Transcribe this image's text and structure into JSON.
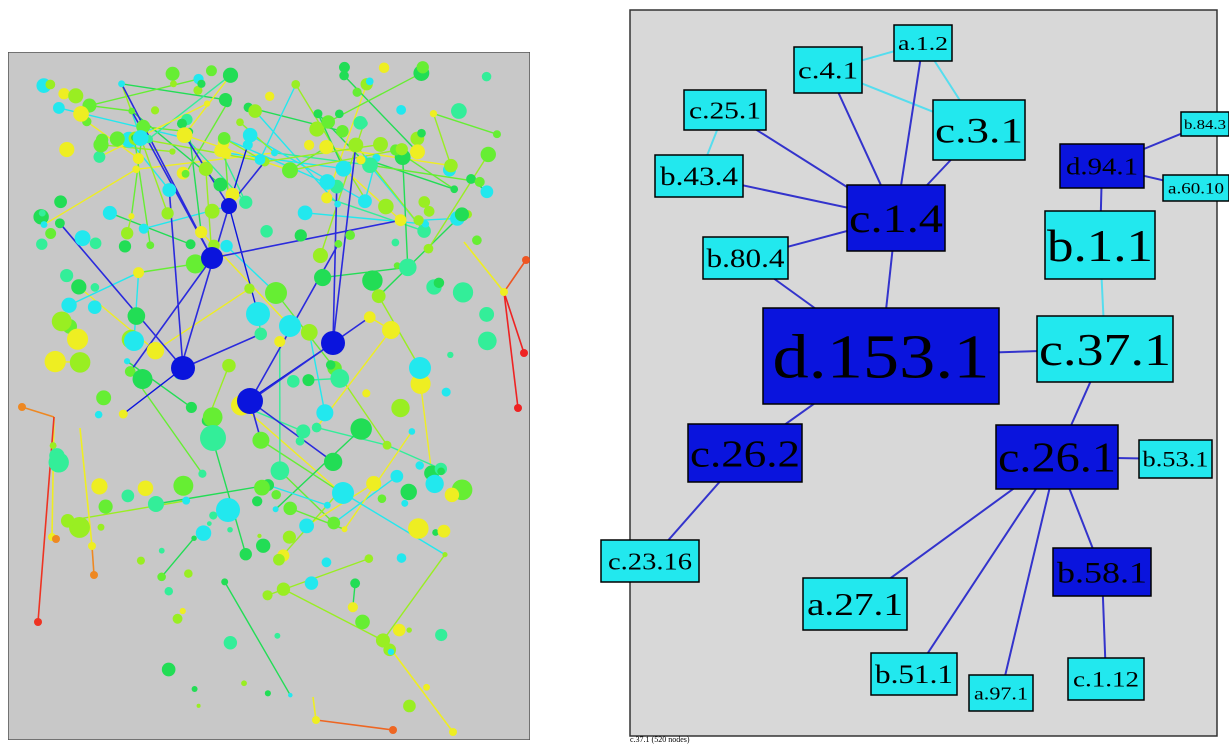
{
  "right_graph": {
    "nodes": [
      {
        "id": "a.1.2",
        "label": "a.1.2",
        "color": "#22e8ee"
      },
      {
        "id": "c.4.1",
        "label": "c.4.1",
        "color": "#22e8ee"
      },
      {
        "id": "c.3.1",
        "label": "c.3.1",
        "color": "#22e8ee"
      },
      {
        "id": "c.25.1",
        "label": "c.25.1",
        "color": "#22e8ee"
      },
      {
        "id": "b.43.4",
        "label": "b.43.4",
        "color": "#22e8ee"
      },
      {
        "id": "c.1.4",
        "label": "c.1.4",
        "color": "#0a14dd"
      },
      {
        "id": "b.80.4",
        "label": "b.80.4",
        "color": "#22e8ee"
      },
      {
        "id": "b.84.3",
        "label": "b.84.3",
        "color": "#22e8ee"
      },
      {
        "id": "d.94.1",
        "label": "d.94.1",
        "color": "#0a14dd"
      },
      {
        "id": "a.60.10",
        "label": "a.60.10",
        "color": "#22e8ee"
      },
      {
        "id": "b.1.1",
        "label": "b.1.1",
        "color": "#22e8ee"
      },
      {
        "id": "d.153.1",
        "label": "d.153.1",
        "color": "#0a14dd"
      },
      {
        "id": "c.37.1",
        "label": "c.37.1",
        "color": "#22e8ee"
      },
      {
        "id": "c.26.2",
        "label": "c.26.2",
        "color": "#0a14dd"
      },
      {
        "id": "c.26.1",
        "label": "c.26.1",
        "color": "#0a14dd"
      },
      {
        "id": "b.53.1",
        "label": "b.53.1",
        "color": "#22e8ee"
      },
      {
        "id": "c.23.16",
        "label": "c.23.16",
        "color": "#22e8ee"
      },
      {
        "id": "b.58.1",
        "label": "b.58.1",
        "color": "#0a14dd"
      },
      {
        "id": "a.27.1",
        "label": "a.27.1",
        "color": "#22e8ee"
      },
      {
        "id": "b.51.1",
        "label": "b.51.1",
        "color": "#22e8ee"
      },
      {
        "id": "a.97.1",
        "label": "a.97.1",
        "color": "#22e8ee"
      },
      {
        "id": "c.1.12",
        "label": "c.1.12",
        "color": "#22e8ee"
      }
    ],
    "edges": [
      {
        "from": "c.4.1",
        "to": "a.1.2",
        "color": "#55ddee"
      },
      {
        "from": "a.1.2",
        "to": "c.3.1",
        "color": "#55ddee"
      },
      {
        "from": "c.4.1",
        "to": "c.3.1",
        "color": "#55ddee"
      },
      {
        "from": "c.4.1",
        "to": "c.1.4",
        "color": "#3333cc"
      },
      {
        "from": "a.1.2",
        "to": "c.1.4",
        "color": "#3333cc"
      },
      {
        "from": "c.3.1",
        "to": "c.1.4",
        "color": "#3333cc"
      },
      {
        "from": "c.25.1",
        "to": "b.43.4",
        "color": "#55ddee"
      },
      {
        "from": "c.25.1",
        "to": "c.1.4",
        "color": "#3333cc"
      },
      {
        "from": "b.43.4",
        "to": "c.1.4",
        "color": "#3333cc"
      },
      {
        "from": "b.80.4",
        "to": "c.1.4",
        "color": "#3333cc"
      },
      {
        "from": "c.1.4",
        "to": "d.153.1",
        "color": "#3333cc"
      },
      {
        "from": "b.80.4",
        "to": "d.153.1",
        "color": "#3333cc"
      },
      {
        "from": "d.94.1",
        "to": "b.84.3",
        "color": "#3333cc"
      },
      {
        "from": "d.94.1",
        "to": "a.60.10",
        "color": "#3333cc"
      },
      {
        "from": "d.94.1",
        "to": "b.1.1",
        "color": "#3333cc"
      },
      {
        "from": "b.1.1",
        "to": "c.37.1",
        "color": "#55ddee"
      },
      {
        "from": "d.153.1",
        "to": "c.37.1",
        "color": "#3333cc"
      },
      {
        "from": "d.153.1",
        "to": "c.26.2",
        "color": "#3333cc"
      },
      {
        "from": "c.37.1",
        "to": "c.26.1",
        "color": "#3333cc"
      },
      {
        "from": "c.26.2",
        "to": "c.23.16",
        "color": "#3333cc"
      },
      {
        "from": "c.26.1",
        "to": "b.53.1",
        "color": "#3333cc"
      },
      {
        "from": "c.26.1",
        "to": "a.27.1",
        "color": "#3333cc"
      },
      {
        "from": "c.26.1",
        "to": "b.51.1",
        "color": "#3333cc"
      },
      {
        "from": "c.26.1",
        "to": "a.97.1",
        "color": "#3333cc"
      },
      {
        "from": "c.26.1",
        "to": "b.58.1",
        "color": "#3333cc"
      },
      {
        "from": "b.58.1",
        "to": "c.1.12",
        "color": "#3333cc"
      }
    ]
  },
  "footer": {
    "caption": "c.37.1 (520 nodes)"
  },
  "colors": {
    "panel_bg_left": "#c8c8c8",
    "panel_bg_right": "#d8d8d8",
    "node_dark": "#0a14dd",
    "node_light": "#22e8ee"
  }
}
